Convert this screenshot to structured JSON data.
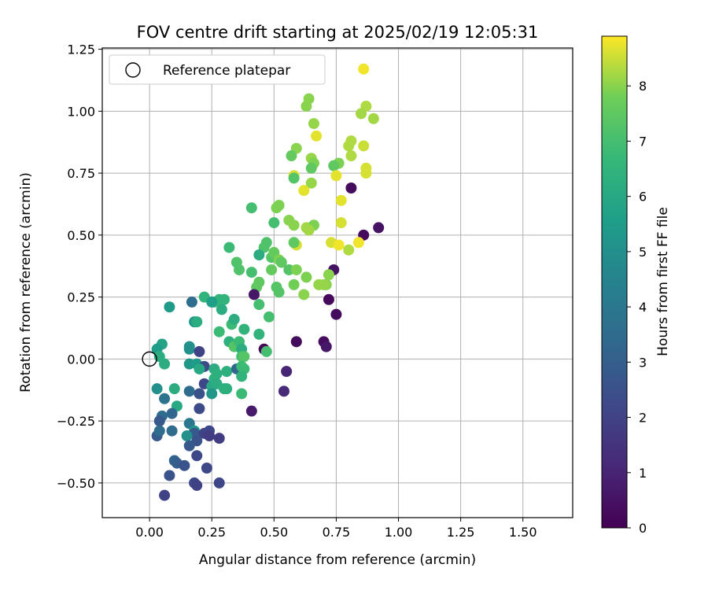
{
  "chart_data": {
    "type": "scatter",
    "title": "FOV centre drift starting at 2025/02/19 12:05:31",
    "xlabel": "Angular distance from reference (arcmin)",
    "ylabel": "Rotation from reference (arcmin)",
    "xlim": [
      -0.19,
      1.7
    ],
    "ylim": [
      -0.64,
      1.255
    ],
    "xticks": [
      0.0,
      0.25,
      0.5,
      0.75,
      1.0,
      1.25,
      1.5
    ],
    "xtick_labels": [
      "0.00",
      "0.25",
      "0.50",
      "0.75",
      "1.00",
      "1.25",
      "1.50"
    ],
    "yticks": [
      -0.5,
      -0.25,
      0.0,
      0.25,
      0.5,
      0.75,
      1.0,
      1.25
    ],
    "ytick_labels": [
      "−0.50",
      "−0.25",
      "0.00",
      "0.25",
      "0.50",
      "0.75",
      "1.00",
      "1.25"
    ],
    "grid": true,
    "legend": {
      "placement": "top-left",
      "label": "Reference platepar"
    },
    "reference_point": {
      "x": 0.0,
      "y": 0.0,
      "marker": "open circle"
    },
    "colorbar": {
      "label": "Hours from first FF file",
      "colormap": "viridis",
      "min": 0,
      "max": 8.9,
      "ticks": [
        0,
        1,
        2,
        3,
        4,
        5,
        6,
        7,
        8
      ],
      "tick_labels": [
        "0",
        "1",
        "2",
        "3",
        "4",
        "5",
        "6",
        "7",
        "8"
      ]
    },
    "points": [
      {
        "x": 0.86,
        "y": 1.17,
        "t": 8.8
      },
      {
        "x": 0.64,
        "y": 1.05,
        "t": 8.0
      },
      {
        "x": 0.63,
        "y": 1.02,
        "t": 8.0
      },
      {
        "x": 0.87,
        "y": 1.02,
        "t": 8.3
      },
      {
        "x": 0.85,
        "y": 0.99,
        "t": 8.2
      },
      {
        "x": 0.9,
        "y": 0.97,
        "t": 8.2
      },
      {
        "x": 0.66,
        "y": 0.95,
        "t": 8.1
      },
      {
        "x": 0.67,
        "y": 0.9,
        "t": 8.7
      },
      {
        "x": 0.81,
        "y": 0.88,
        "t": 8.3
      },
      {
        "x": 0.8,
        "y": 0.86,
        "t": 8.3
      },
      {
        "x": 0.86,
        "y": 0.86,
        "t": 8.5
      },
      {
        "x": 0.59,
        "y": 0.85,
        "t": 8.0
      },
      {
        "x": 0.81,
        "y": 0.82,
        "t": 8.3
      },
      {
        "x": 0.65,
        "y": 0.81,
        "t": 8.1
      },
      {
        "x": 0.57,
        "y": 0.82,
        "t": 7.6
      },
      {
        "x": 0.76,
        "y": 0.79,
        "t": 7.9
      },
      {
        "x": 0.74,
        "y": 0.78,
        "t": 7.5
      },
      {
        "x": 0.66,
        "y": 0.79,
        "t": 7.9
      },
      {
        "x": 0.65,
        "y": 0.77,
        "t": 7.5
      },
      {
        "x": 0.87,
        "y": 0.77,
        "t": 8.6
      },
      {
        "x": 0.87,
        "y": 0.75,
        "t": 8.6
      },
      {
        "x": 0.58,
        "y": 0.74,
        "t": 8.6
      },
      {
        "x": 0.58,
        "y": 0.73,
        "t": 7.3
      },
      {
        "x": 0.75,
        "y": 0.74,
        "t": 8.7
      },
      {
        "x": 0.65,
        "y": 0.71,
        "t": 8.1
      },
      {
        "x": 0.62,
        "y": 0.68,
        "t": 8.7
      },
      {
        "x": 0.81,
        "y": 0.69,
        "t": 0.3
      },
      {
        "x": 0.77,
        "y": 0.64,
        "t": 8.7
      },
      {
        "x": 0.41,
        "y": 0.61,
        "t": 7.0
      },
      {
        "x": 0.51,
        "y": 0.61,
        "t": 7.9
      },
      {
        "x": 0.52,
        "y": 0.62,
        "t": 7.9
      },
      {
        "x": 0.56,
        "y": 0.56,
        "t": 8.0
      },
      {
        "x": 0.58,
        "y": 0.54,
        "t": 8.0
      },
      {
        "x": 0.5,
        "y": 0.55,
        "t": 7.0
      },
      {
        "x": 0.63,
        "y": 0.53,
        "t": 8.2
      },
      {
        "x": 0.66,
        "y": 0.54,
        "t": 7.9
      },
      {
        "x": 0.64,
        "y": 0.52,
        "t": 8.2
      },
      {
        "x": 0.77,
        "y": 0.55,
        "t": 8.6
      },
      {
        "x": 0.86,
        "y": 0.5,
        "t": 0.3
      },
      {
        "x": 0.92,
        "y": 0.53,
        "t": 0.5
      },
      {
        "x": 0.59,
        "y": 0.46,
        "t": 8.6
      },
      {
        "x": 0.58,
        "y": 0.47,
        "t": 7.5
      },
      {
        "x": 0.73,
        "y": 0.47,
        "t": 8.6
      },
      {
        "x": 0.76,
        "y": 0.46,
        "t": 8.8
      },
      {
        "x": 0.8,
        "y": 0.44,
        "t": 8.3
      },
      {
        "x": 0.84,
        "y": 0.47,
        "t": 8.8
      },
      {
        "x": 0.32,
        "y": 0.45,
        "t": 6.8
      },
      {
        "x": 0.47,
        "y": 0.47,
        "t": 7.2
      },
      {
        "x": 0.46,
        "y": 0.45,
        "t": 7.2
      },
      {
        "x": 0.44,
        "y": 0.42,
        "t": 6.2
      },
      {
        "x": 0.49,
        "y": 0.41,
        "t": 7.3
      },
      {
        "x": 0.5,
        "y": 0.43,
        "t": 7.6
      },
      {
        "x": 0.52,
        "y": 0.4,
        "t": 7.9
      },
      {
        "x": 0.53,
        "y": 0.39,
        "t": 7.5
      },
      {
        "x": 0.35,
        "y": 0.39,
        "t": 7.2
      },
      {
        "x": 0.36,
        "y": 0.36,
        "t": 7.2
      },
      {
        "x": 0.41,
        "y": 0.35,
        "t": 7.0
      },
      {
        "x": 0.49,
        "y": 0.36,
        "t": 7.6
      },
      {
        "x": 0.56,
        "y": 0.36,
        "t": 7.3
      },
      {
        "x": 0.59,
        "y": 0.36,
        "t": 7.9
      },
      {
        "x": 0.63,
        "y": 0.33,
        "t": 7.9
      },
      {
        "x": 0.74,
        "y": 0.36,
        "t": 0.5
      },
      {
        "x": 0.72,
        "y": 0.34,
        "t": 8.0
      },
      {
        "x": 0.71,
        "y": 0.3,
        "t": 8.0
      },
      {
        "x": 0.58,
        "y": 0.3,
        "t": 7.8
      },
      {
        "x": 0.44,
        "y": 0.31,
        "t": 7.5
      },
      {
        "x": 0.43,
        "y": 0.29,
        "t": 7.5
      },
      {
        "x": 0.42,
        "y": 0.26,
        "t": 0.6
      },
      {
        "x": 0.51,
        "y": 0.29,
        "t": 7.3
      },
      {
        "x": 0.52,
        "y": 0.27,
        "t": 7.3
      },
      {
        "x": 0.62,
        "y": 0.26,
        "t": 8.0
      },
      {
        "x": 0.68,
        "y": 0.3,
        "t": 8.1
      },
      {
        "x": 0.7,
        "y": 0.3,
        "t": 8.1
      },
      {
        "x": 0.72,
        "y": 0.24,
        "t": 0.2
      },
      {
        "x": 0.75,
        "y": 0.18,
        "t": 0.3
      },
      {
        "x": 0.44,
        "y": 0.22,
        "t": 7.0
      },
      {
        "x": 0.48,
        "y": 0.17,
        "t": 7.0
      },
      {
        "x": 0.22,
        "y": 0.25,
        "t": 6.5
      },
      {
        "x": 0.26,
        "y": 0.23,
        "t": 6.8
      },
      {
        "x": 0.28,
        "y": 0.24,
        "t": 6.5
      },
      {
        "x": 0.3,
        "y": 0.24,
        "t": 6.5
      },
      {
        "x": 0.29,
        "y": 0.2,
        "t": 6.2
      },
      {
        "x": 0.25,
        "y": 0.23,
        "t": 5.6
      },
      {
        "x": 0.17,
        "y": 0.23,
        "t": 3.6
      },
      {
        "x": 0.08,
        "y": 0.21,
        "t": 5.5
      },
      {
        "x": 0.33,
        "y": 0.14,
        "t": 6.8
      },
      {
        "x": 0.34,
        "y": 0.16,
        "t": 6.2
      },
      {
        "x": 0.38,
        "y": 0.12,
        "t": 6.5
      },
      {
        "x": 0.44,
        "y": 0.1,
        "t": 6.5
      },
      {
        "x": 0.18,
        "y": 0.15,
        "t": 5.3
      },
      {
        "x": 0.19,
        "y": 0.15,
        "t": 6.2
      },
      {
        "x": 0.28,
        "y": 0.11,
        "t": 6.8
      },
      {
        "x": 0.32,
        "y": 0.07,
        "t": 6.3
      },
      {
        "x": 0.34,
        "y": 0.05,
        "t": 7.3
      },
      {
        "x": 0.36,
        "y": 0.07,
        "t": 6.8
      },
      {
        "x": 0.37,
        "y": 0.04,
        "t": 6.2
      },
      {
        "x": 0.37,
        "y": 0.01,
        "t": 7.0
      },
      {
        "x": 0.38,
        "y": 0.01,
        "t": 7.3
      },
      {
        "x": 0.46,
        "y": 0.04,
        "t": 0.2
      },
      {
        "x": 0.47,
        "y": 0.03,
        "t": 7.0
      },
      {
        "x": 0.59,
        "y": 0.07,
        "t": 8.1
      },
      {
        "x": 0.59,
        "y": 0.07,
        "t": 0.3
      },
      {
        "x": 0.7,
        "y": 0.07,
        "t": 0.3
      },
      {
        "x": 0.71,
        "y": 0.05,
        "t": 0.6
      },
      {
        "x": 0.05,
        "y": 0.06,
        "t": 5.8
      },
      {
        "x": 0.03,
        "y": 0.04,
        "t": 5.5
      },
      {
        "x": 0.04,
        "y": 0.01,
        "t": 6.2
      },
      {
        "x": 0.06,
        "y": -0.02,
        "t": 6.2
      },
      {
        "x": 0.16,
        "y": 0.04,
        "t": 5.0
      },
      {
        "x": 0.16,
        "y": 0.05,
        "t": 5.0
      },
      {
        "x": 0.2,
        "y": 0.03,
        "t": 2.0
      },
      {
        "x": 0.16,
        "y": -0.02,
        "t": 5.3
      },
      {
        "x": 0.19,
        "y": -0.02,
        "t": 5.5
      },
      {
        "x": 0.22,
        "y": -0.03,
        "t": 2.3
      },
      {
        "x": 0.2,
        "y": -0.04,
        "t": 6.0
      },
      {
        "x": 0.26,
        "y": -0.04,
        "t": 6.2
      },
      {
        "x": 0.27,
        "y": -0.06,
        "t": 6.3
      },
      {
        "x": 0.31,
        "y": -0.05,
        "t": 6.3
      },
      {
        "x": 0.35,
        "y": -0.04,
        "t": 3.3
      },
      {
        "x": 0.37,
        "y": -0.03,
        "t": 6.8
      },
      {
        "x": 0.38,
        "y": -0.04,
        "t": 6.8
      },
      {
        "x": 0.37,
        "y": -0.07,
        "t": 6.5
      },
      {
        "x": 0.55,
        "y": -0.05,
        "t": 1.0
      },
      {
        "x": 0.26,
        "y": -0.08,
        "t": 6.3
      },
      {
        "x": 0.22,
        "y": -0.1,
        "t": 2.2
      },
      {
        "x": 0.25,
        "y": -0.11,
        "t": 6.0
      },
      {
        "x": 0.27,
        "y": -0.1,
        "t": 6.2
      },
      {
        "x": 0.3,
        "y": -0.12,
        "t": 6.3
      },
      {
        "x": 0.31,
        "y": -0.12,
        "t": 6.3
      },
      {
        "x": 0.03,
        "y": -0.12,
        "t": 5.0
      },
      {
        "x": 0.1,
        "y": -0.12,
        "t": 6.2
      },
      {
        "x": 0.16,
        "y": -0.13,
        "t": 3.5
      },
      {
        "x": 0.2,
        "y": -0.14,
        "t": 2.5
      },
      {
        "x": 0.25,
        "y": -0.14,
        "t": 5.3
      },
      {
        "x": 0.37,
        "y": -0.14,
        "t": 6.8
      },
      {
        "x": 0.54,
        "y": -0.13,
        "t": 1.2
      },
      {
        "x": 0.06,
        "y": -0.16,
        "t": 3.8
      },
      {
        "x": 0.11,
        "y": -0.19,
        "t": 6.0
      },
      {
        "x": 0.2,
        "y": -0.2,
        "t": 2.3
      },
      {
        "x": 0.41,
        "y": -0.21,
        "t": 0.7
      },
      {
        "x": 0.05,
        "y": -0.23,
        "t": 3.5
      },
      {
        "x": 0.09,
        "y": -0.22,
        "t": 3.3
      },
      {
        "x": 0.04,
        "y": -0.25,
        "t": 2.8
      },
      {
        "x": 0.16,
        "y": -0.26,
        "t": 4.0
      },
      {
        "x": 0.18,
        "y": -0.29,
        "t": 5.3
      },
      {
        "x": 0.18,
        "y": -0.3,
        "t": 2.8
      },
      {
        "x": 0.15,
        "y": -0.31,
        "t": 5.0
      },
      {
        "x": 0.03,
        "y": -0.31,
        "t": 2.8
      },
      {
        "x": 0.04,
        "y": -0.29,
        "t": 3.5
      },
      {
        "x": 0.09,
        "y": -0.29,
        "t": 3.5
      },
      {
        "x": 0.22,
        "y": -0.3,
        "t": 2.0
      },
      {
        "x": 0.24,
        "y": -0.29,
        "t": 2.2
      },
      {
        "x": 0.24,
        "y": -0.31,
        "t": 1.8
      },
      {
        "x": 0.28,
        "y": -0.32,
        "t": 1.8
      },
      {
        "x": 0.19,
        "y": -0.33,
        "t": 2.6
      },
      {
        "x": 0.16,
        "y": -0.35,
        "t": 2.8
      },
      {
        "x": 0.19,
        "y": -0.39,
        "t": 2.2
      },
      {
        "x": 0.1,
        "y": -0.41,
        "t": 3.2
      },
      {
        "x": 0.11,
        "y": -0.42,
        "t": 3.0
      },
      {
        "x": 0.14,
        "y": -0.43,
        "t": 2.6
      },
      {
        "x": 0.23,
        "y": -0.44,
        "t": 2.2
      },
      {
        "x": 0.08,
        "y": -0.47,
        "t": 2.6
      },
      {
        "x": 0.18,
        "y": -0.5,
        "t": 2.2
      },
      {
        "x": 0.19,
        "y": -0.51,
        "t": 2.0
      },
      {
        "x": 0.28,
        "y": -0.5,
        "t": 2.2
      },
      {
        "x": 0.06,
        "y": -0.55,
        "t": 2.0
      }
    ]
  }
}
